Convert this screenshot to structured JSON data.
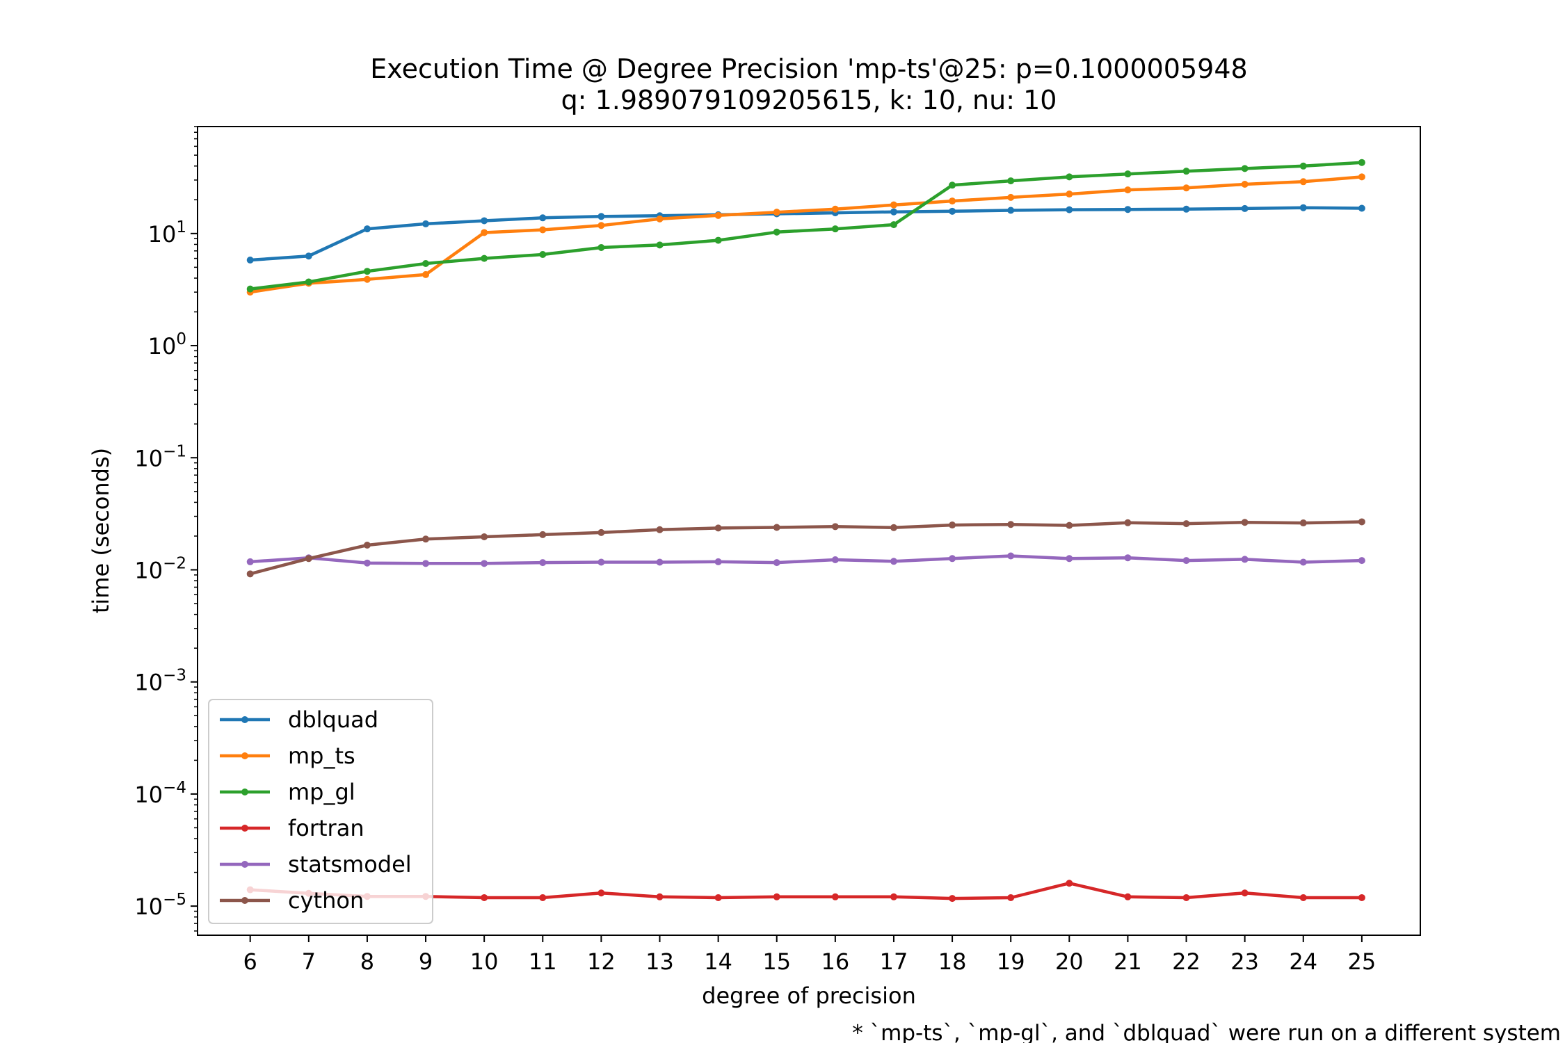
{
  "chart_data": {
    "type": "line",
    "title": "Execution Time @ Degree Precision 'mp-ts'@25: p=0.1000005948",
    "subtitle": "q: 1.989079109205615, k: 10, nu: 10",
    "xlabel": "degree of precision",
    "ylabel": "time (seconds)",
    "footnote": "* `mp-ts`, `mp-gl`, and `dblquad` were run on a different system",
    "x": [
      6,
      7,
      8,
      9,
      10,
      11,
      12,
      13,
      14,
      15,
      16,
      17,
      18,
      19,
      20,
      21,
      22,
      23,
      24,
      25
    ],
    "xlim": [
      5.1,
      26.0
    ],
    "ylim": [
      5.5e-06,
      90
    ],
    "yscale": "log",
    "y_ticks": [
      {
        "value": 1e-05,
        "base": "10",
        "exp": "−5"
      },
      {
        "value": 0.0001,
        "base": "10",
        "exp": "−4"
      },
      {
        "value": 0.001,
        "base": "10",
        "exp": "−3"
      },
      {
        "value": 0.01,
        "base": "10",
        "exp": "−2"
      },
      {
        "value": 0.1,
        "base": "10",
        "exp": "−1"
      },
      {
        "value": 1,
        "base": "10",
        "exp": "0"
      },
      {
        "value": 10,
        "base": "10",
        "exp": "1"
      }
    ],
    "grid": false,
    "legend_position": "lower-left",
    "series": [
      {
        "name": "dblquad",
        "color": "#1f77b4",
        "values": [
          5.8,
          6.3,
          11.0,
          12.2,
          13.0,
          13.8,
          14.2,
          14.4,
          14.7,
          15.0,
          15.3,
          15.6,
          15.8,
          16.1,
          16.3,
          16.4,
          16.5,
          16.7,
          17.0,
          16.8
        ]
      },
      {
        "name": "mp_ts",
        "color": "#ff7f0e",
        "values": [
          3.0,
          3.6,
          3.9,
          4.3,
          10.2,
          10.8,
          11.8,
          13.5,
          14.5,
          15.5,
          16.5,
          18.0,
          19.5,
          21.0,
          22.5,
          24.5,
          25.5,
          27.5,
          29.0,
          32.0
        ]
      },
      {
        "name": "mp_gl",
        "color": "#2ca02c",
        "values": [
          3.2,
          3.7,
          4.6,
          5.4,
          6.0,
          6.5,
          7.5,
          7.9,
          8.7,
          10.3,
          11.0,
          12.0,
          27.0,
          29.5,
          32.0,
          34.0,
          36.0,
          38.0,
          40.0,
          43.0
        ]
      },
      {
        "name": "fortran",
        "color": "#d62728",
        "values": [
          1.4e-05,
          1.3e-05,
          1.22e-05,
          1.22e-05,
          1.19e-05,
          1.19e-05,
          1.31e-05,
          1.21e-05,
          1.19e-05,
          1.21e-05,
          1.21e-05,
          1.21e-05,
          1.17e-05,
          1.19e-05,
          1.6e-05,
          1.21e-05,
          1.19e-05,
          1.31e-05,
          1.19e-05,
          1.19e-05
        ]
      },
      {
        "name": "statsmodel",
        "color": "#9467bd",
        "values": [
          0.0118,
          0.0128,
          0.0115,
          0.0114,
          0.0114,
          0.0116,
          0.0117,
          0.0117,
          0.0118,
          0.0116,
          0.0123,
          0.0119,
          0.0126,
          0.0133,
          0.0126,
          0.0128,
          0.0121,
          0.0124,
          0.0117,
          0.0121
        ]
      },
      {
        "name": "cython",
        "color": "#8c564b",
        "values": [
          0.0092,
          0.0126,
          0.0166,
          0.0188,
          0.0197,
          0.0206,
          0.0215,
          0.0228,
          0.0236,
          0.0239,
          0.0243,
          0.0238,
          0.0251,
          0.0254,
          0.0249,
          0.0263,
          0.0258,
          0.0265,
          0.0262,
          0.0268
        ]
      }
    ]
  }
}
